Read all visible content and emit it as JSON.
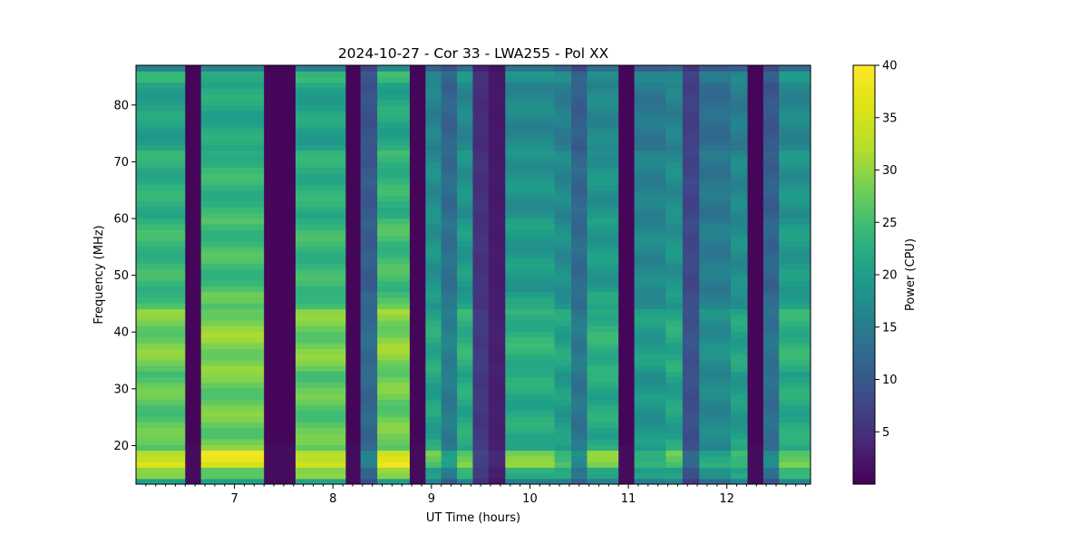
{
  "chart_data": {
    "type": "heatmap",
    "title": "2024-10-27 - Cor 33 - LWA255 - Pol XX",
    "xlabel": "UT Time (hours)",
    "ylabel": "Frequency (MHz)",
    "xlim": [
      6.0,
      12.85
    ],
    "ylim": [
      13.2,
      87.0
    ],
    "xticks": [
      7,
      8,
      9,
      10,
      11,
      12
    ],
    "yticks": [
      20,
      30,
      40,
      50,
      60,
      70,
      80
    ],
    "grid": false,
    "colormap": "viridis",
    "colorbar": {
      "label": "Power (CPU)",
      "range": [
        0,
        40
      ],
      "ticks": [
        5,
        10,
        15,
        20,
        25,
        30,
        35,
        40
      ]
    },
    "time_columns": [
      {
        "t0": 6.0,
        "t1": 6.5,
        "level": 27
      },
      {
        "t0": 6.5,
        "t1": 6.66,
        "level": 0
      },
      {
        "t0": 6.66,
        "t1": 7.3,
        "level": 28
      },
      {
        "t0": 7.3,
        "t1": 7.62,
        "level": 0
      },
      {
        "t0": 7.62,
        "t1": 8.13,
        "level": 27
      },
      {
        "t0": 8.13,
        "t1": 8.28,
        "level": 0
      },
      {
        "t0": 8.28,
        "t1": 8.45,
        "level": 12
      },
      {
        "t0": 8.45,
        "t1": 8.78,
        "level": 28
      },
      {
        "t0": 8.78,
        "t1": 8.94,
        "level": 0
      },
      {
        "t0": 8.94,
        "t1": 9.1,
        "level": 21
      },
      {
        "t0": 9.1,
        "t1": 9.26,
        "level": 15
      },
      {
        "t0": 9.26,
        "t1": 9.42,
        "level": 22
      },
      {
        "t0": 9.42,
        "t1": 9.58,
        "level": 6
      },
      {
        "t0": 9.58,
        "t1": 9.75,
        "level": 3
      },
      {
        "t0": 9.75,
        "t1": 10.25,
        "level": 22
      },
      {
        "t0": 10.25,
        "t1": 10.42,
        "level": 20
      },
      {
        "t0": 10.42,
        "t1": 10.58,
        "level": 14
      },
      {
        "t0": 10.58,
        "t1": 10.9,
        "level": 22
      },
      {
        "t0": 10.9,
        "t1": 11.06,
        "level": 0
      },
      {
        "t0": 11.06,
        "t1": 11.38,
        "level": 19
      },
      {
        "t0": 11.38,
        "t1": 11.55,
        "level": 21
      },
      {
        "t0": 11.55,
        "t1": 11.72,
        "level": 9
      },
      {
        "t0": 11.72,
        "t1": 12.04,
        "level": 17
      },
      {
        "t0": 12.04,
        "t1": 12.21,
        "level": 20
      },
      {
        "t0": 12.21,
        "t1": 12.37,
        "level": 0
      },
      {
        "t0": 12.37,
        "t1": 12.53,
        "level": 13
      },
      {
        "t0": 12.53,
        "t1": 12.85,
        "level": 22
      }
    ]
  }
}
